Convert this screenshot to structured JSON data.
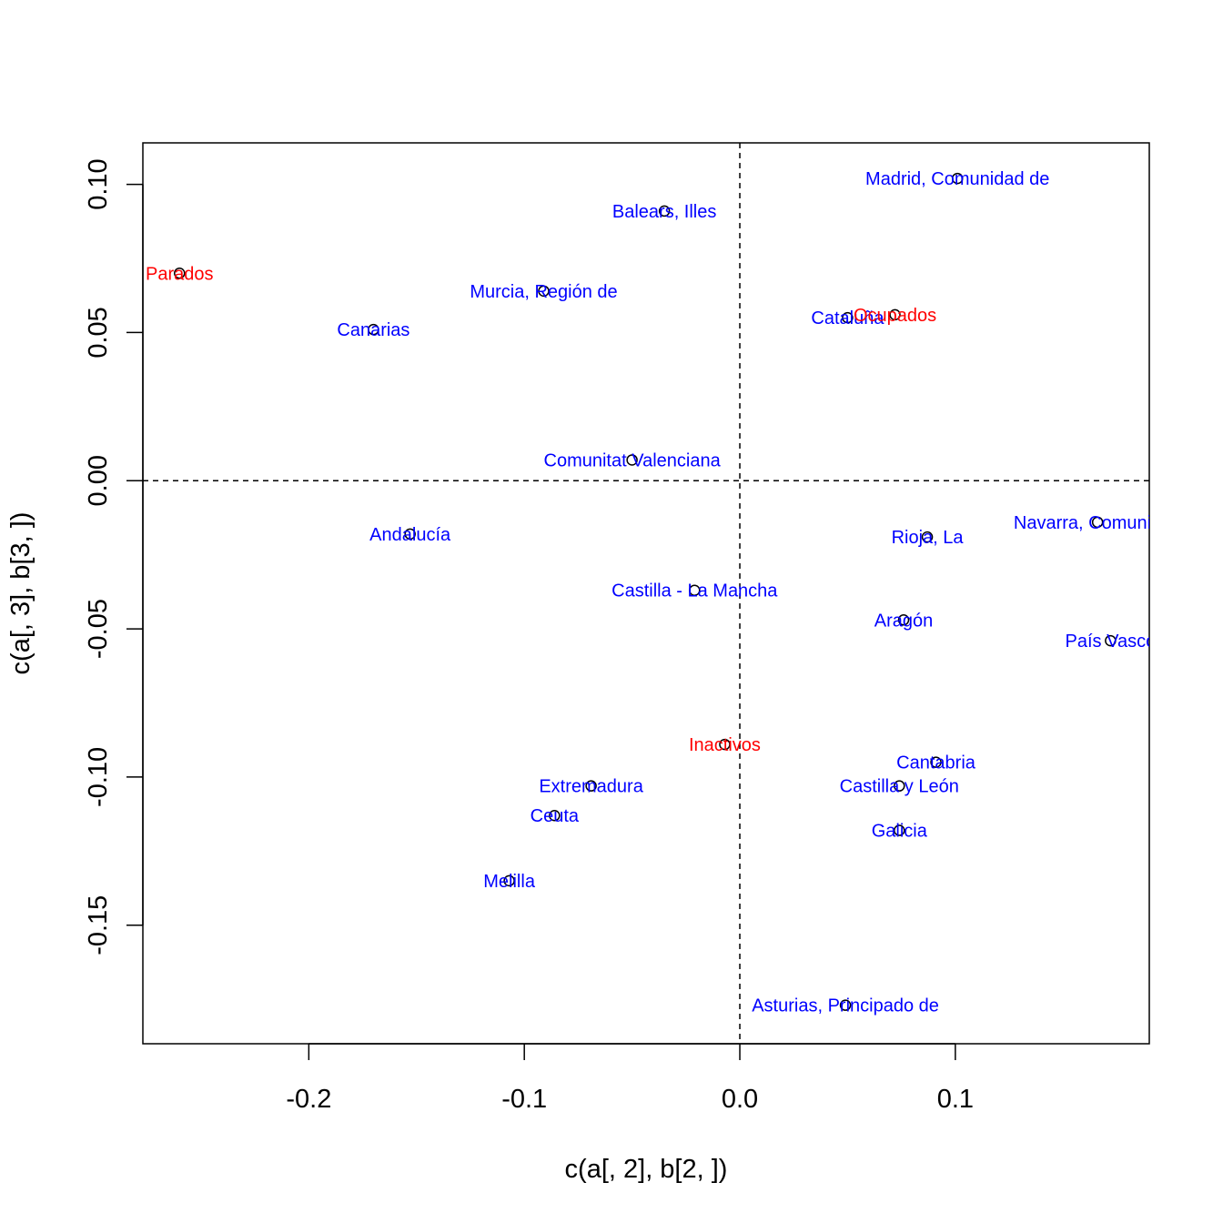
{
  "chart_data": {
    "type": "scatter",
    "xlabel": "c(a[, 2], b[2, ])",
    "ylabel": "c(a[, 3], b[3, ])",
    "xlim": [
      -0.277,
      0.19
    ],
    "ylim": [
      -0.19,
      0.114
    ],
    "x_ticks": [
      -0.2,
      -0.1,
      0.0,
      0.1
    ],
    "x_tick_labels": [
      "-0.2",
      "-0.1",
      "0.0",
      "0.1"
    ],
    "y_ticks": [
      -0.15,
      -0.1,
      -0.05,
      0.0,
      0.05,
      0.1
    ],
    "y_tick_labels": [
      "-0.15",
      "-0.10",
      "-0.05",
      "0.00",
      "0.05",
      "0.10"
    ],
    "reference_lines": {
      "x": 0,
      "y": 0,
      "style": "dashed"
    },
    "grid": false,
    "colors": {
      "rows": "#0000ff",
      "columns": "#ff0000",
      "markers": "#000000"
    },
    "series": [
      {
        "color": "#0000ff",
        "points": [
          {
            "label": "Madrid, Comunidad de",
            "x": 0.101,
            "y": 0.102
          },
          {
            "label": "Balears, Illes",
            "x": -0.035,
            "y": 0.091
          },
          {
            "label": "Murcia, Región de",
            "x": -0.091,
            "y": 0.064
          },
          {
            "label": "Canarias",
            "x": -0.17,
            "y": 0.051
          },
          {
            "label": "Cataluña",
            "x": 0.05,
            "y": 0.055
          },
          {
            "label": "Comunitat Valenciana",
            "x": -0.05,
            "y": 0.007
          },
          {
            "label": "Andalucía",
            "x": -0.153,
            "y": -0.018
          },
          {
            "label": "Navarra, Comunidad",
            "x": 0.166,
            "y": -0.014
          },
          {
            "label": "Rioja, La",
            "x": 0.087,
            "y": -0.019
          },
          {
            "label": "Castilla - La Mancha",
            "x": -0.021,
            "y": -0.037
          },
          {
            "label": "Aragón",
            "x": 0.076,
            "y": -0.047
          },
          {
            "label": "País Vasco",
            "x": 0.172,
            "y": -0.054
          },
          {
            "label": "Cantabria",
            "x": 0.091,
            "y": -0.095
          },
          {
            "label": "Castilla y León",
            "x": 0.074,
            "y": -0.103
          },
          {
            "label": "Extremadura",
            "x": -0.069,
            "y": -0.103
          },
          {
            "label": "Ceuta",
            "x": -0.086,
            "y": -0.113
          },
          {
            "label": "Galicia",
            "x": 0.074,
            "y": -0.118
          },
          {
            "label": "Melilla",
            "x": -0.107,
            "y": -0.135
          },
          {
            "label": "Asturias, Principado de",
            "x": 0.049,
            "y": -0.177
          }
        ]
      },
      {
        "color": "#ff0000",
        "points": [
          {
            "label": "Parados",
            "x": -0.26,
            "y": 0.07
          },
          {
            "label": "Ocupados",
            "x": 0.072,
            "y": 0.056
          },
          {
            "label": "Inactivos",
            "x": -0.007,
            "y": -0.089
          }
        ]
      }
    ]
  }
}
